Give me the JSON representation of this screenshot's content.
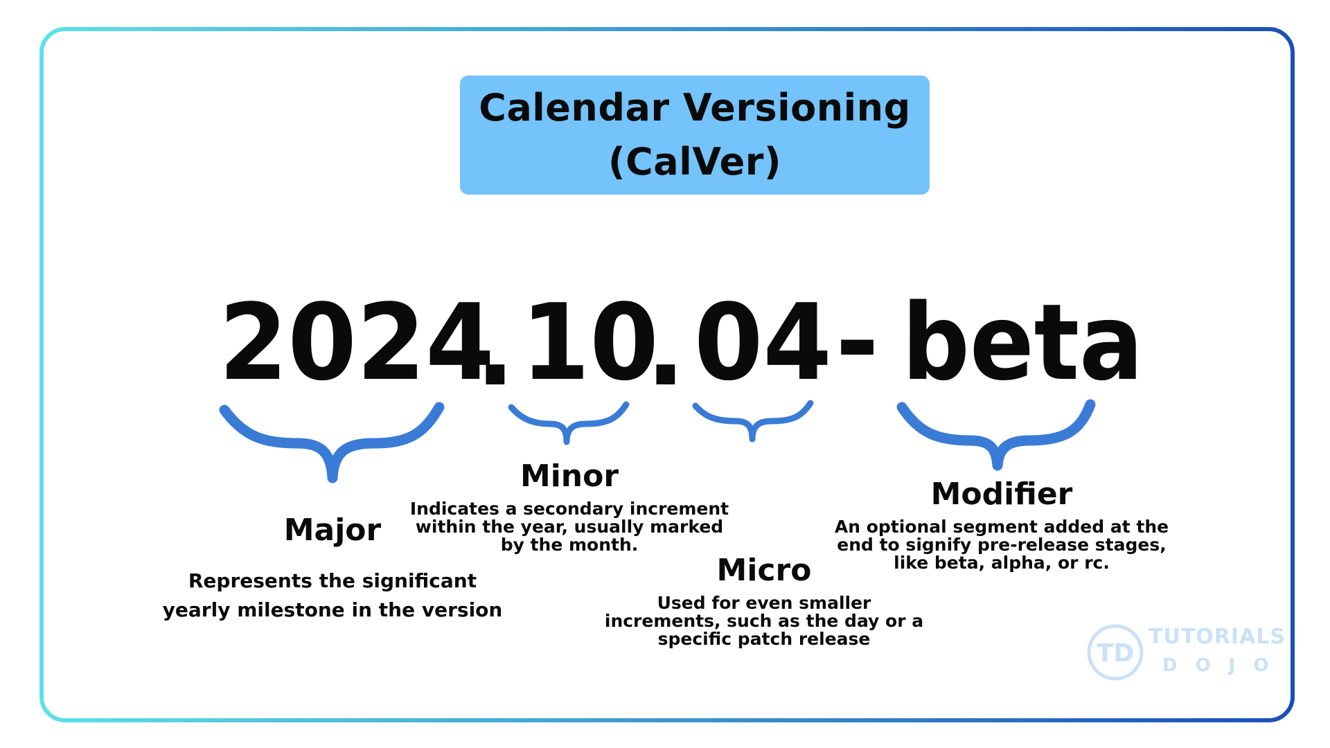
{
  "title": {
    "line1": "Calendar Versioning",
    "line2": "(CalVer)"
  },
  "version": {
    "major": "2024",
    "sep1": ".",
    "minor": "10",
    "sep2": ".",
    "micro": "04",
    "sep3": "-",
    "modifier": "beta"
  },
  "segments": {
    "major": {
      "title": "Major",
      "desc_line1": "Represents the significant",
      "desc_line2": "yearly milestone in the version"
    },
    "minor": {
      "title": "Minor",
      "desc_line1": "Indicates a secondary increment",
      "desc_line2": "within the year, usually marked",
      "desc_line3": "by the month."
    },
    "micro": {
      "title": "Micro",
      "desc_line1": "Used for even smaller",
      "desc_line2": "increments, such as the day or a",
      "desc_line3": "specific patch release"
    },
    "modifier": {
      "title": "Modifier",
      "desc_line1": "An optional segment added at the",
      "desc_line2": "end to signify pre-release stages,",
      "desc_line3": "like beta, alpha, or rc."
    }
  },
  "logo": {
    "mark": "TD",
    "word1": "TUTORIALS",
    "word2": "DOJO"
  },
  "colors": {
    "title_box": "#74c3fb",
    "brace": "#3a7bd5",
    "frame_start": "#5ee0e6",
    "frame_end": "#1a4fb8",
    "logo": "#9fcaf2"
  },
  "icons": {
    "brace": "curly-brace-underline-icon",
    "logo": "tutorials-dojo-logo-icon"
  }
}
